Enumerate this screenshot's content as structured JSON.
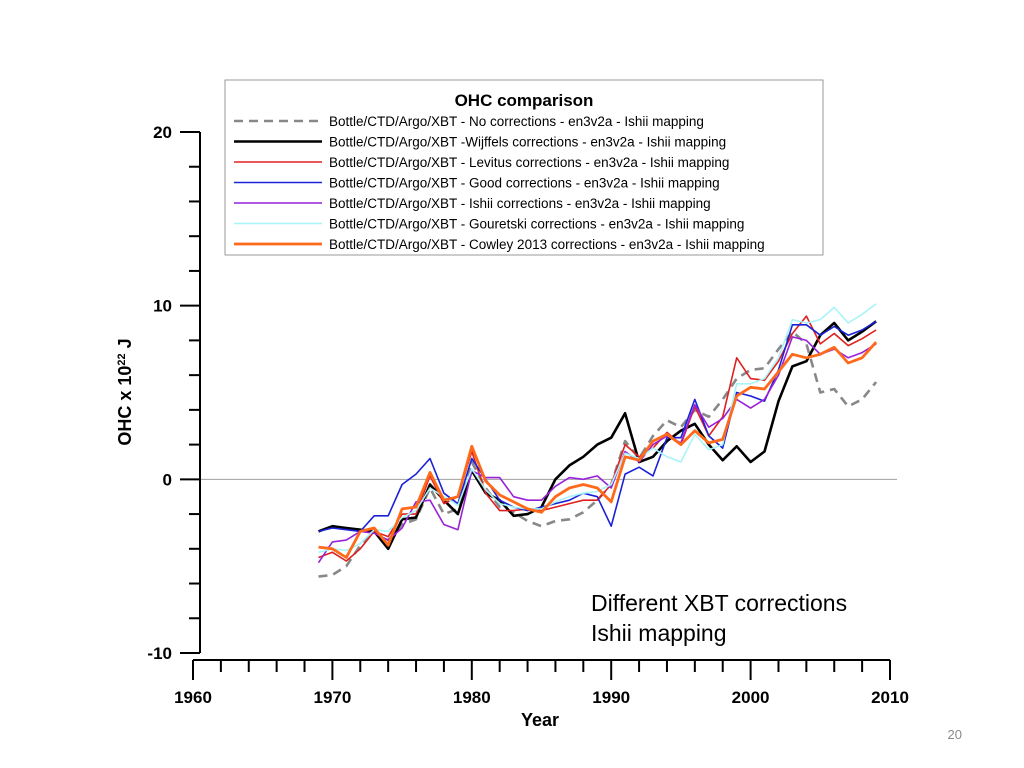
{
  "slide": {
    "page_number": "20"
  },
  "chart_data": {
    "type": "line",
    "title": "OHC comparison",
    "xlabel": "Year",
    "ylabel": "OHC x 10²² J",
    "ylabel_parts": {
      "prefix": "OHC x 10",
      "sup": "22",
      "suffix": " J"
    },
    "xlim": [
      1960,
      2010
    ],
    "ylim": [
      -10,
      20
    ],
    "x_major_ticks": [
      1960,
      1970,
      1980,
      1990,
      2000,
      2010
    ],
    "x_minor_step": 2,
    "y_major_ticks": [
      -10,
      0,
      10,
      20
    ],
    "y_minor_step": 2,
    "zero_line": true,
    "legend_position": "top",
    "annotations": [
      "Different XBT corrections",
      "Ishii mapping"
    ],
    "x": [
      1969,
      1970,
      1971,
      1972,
      1973,
      1974,
      1975,
      1976,
      1977,
      1978,
      1979,
      1980,
      1981,
      1982,
      1983,
      1984,
      1985,
      1986,
      1987,
      1988,
      1989,
      1990,
      1991,
      1992,
      1993,
      1994,
      1995,
      1996,
      1997,
      1998,
      1999,
      2000,
      2001,
      2002,
      2003,
      2004,
      2005,
      2006,
      2007,
      2008,
      2009
    ],
    "series": [
      {
        "name": "Bottle/CTD/Argo/XBT - No corrections - en3v2a - Ishii mapping",
        "color": "#888888",
        "dash": "9,6",
        "width": 2.6,
        "values": [
          -5.6,
          -5.5,
          -5.0,
          -3.8,
          -3.0,
          -3.5,
          -2.6,
          -2.3,
          -0.5,
          -2.0,
          -1.7,
          1.0,
          -0.5,
          -1.6,
          -1.9,
          -2.4,
          -2.7,
          -2.4,
          -2.3,
          -1.9,
          -1.2,
          -0.3,
          2.2,
          1.2,
          2.5,
          3.4,
          3.0,
          4.0,
          3.6,
          4.6,
          5.8,
          6.3,
          6.4,
          7.5,
          8.5,
          7.8,
          5.0,
          5.2,
          4.2,
          4.6,
          5.6
        ]
      },
      {
        "name": "Bottle/CTD/Argo/XBT -Wijffels corrections - en3v2a - Ishii mapping",
        "color": "#000000",
        "dash": "",
        "width": 2.6,
        "values": [
          -3.0,
          -2.7,
          -2.8,
          -2.9,
          -3.0,
          -4.0,
          -2.3,
          -2.2,
          -0.3,
          -1.2,
          -2.0,
          0.5,
          -0.8,
          -1.2,
          -2.1,
          -2.0,
          -1.6,
          0.0,
          0.8,
          1.3,
          2.0,
          2.4,
          3.8,
          1.0,
          1.3,
          2.2,
          2.8,
          3.2,
          2.0,
          1.1,
          1.9,
          1.0,
          1.6,
          4.5,
          6.5,
          6.8,
          8.3,
          9.0,
          8.0,
          8.5,
          9.1
        ]
      },
      {
        "name": "Bottle/CTD/Argo/XBT - Levitus corrections - en3v2a - Ishii mapping",
        "color": "#e02020",
        "dash": "",
        "width": 1.6,
        "values": [
          -4.5,
          -4.2,
          -4.7,
          -4.0,
          -3.0,
          -3.3,
          -2.0,
          -2.0,
          0.2,
          -1.4,
          -1.0,
          1.6,
          -0.8,
          -1.8,
          -1.8,
          -1.7,
          -1.8,
          -1.6,
          -1.4,
          -1.2,
          -1.2,
          -0.3,
          2.0,
          1.3,
          1.8,
          2.7,
          2.0,
          4.2,
          2.5,
          3.6,
          7.0,
          5.8,
          5.7,
          6.8,
          8.4,
          9.4,
          7.8,
          8.4,
          7.7,
          8.1,
          8.6
        ]
      },
      {
        "name": "Bottle/CTD/Argo/XBT - Good corrections - en3v2a - Ishii mapping",
        "color": "#1a22d8",
        "dash": "",
        "width": 1.6,
        "values": [
          -3.0,
          -2.8,
          -2.9,
          -3.0,
          -2.1,
          -2.1,
          -0.3,
          0.3,
          1.2,
          -0.8,
          -1.4,
          1.2,
          0.0,
          -1.2,
          -1.6,
          -1.8,
          -1.6,
          -1.4,
          -1.2,
          -0.8,
          -1.0,
          -2.7,
          0.3,
          0.7,
          0.2,
          2.4,
          2.4,
          4.6,
          2.5,
          1.8,
          5.0,
          4.8,
          4.5,
          6.3,
          8.9,
          8.9,
          8.3,
          8.8,
          8.3,
          8.6,
          9.1
        ]
      },
      {
        "name": "Bottle/CTD/Argo/XBT - Ishii corrections - en3v2a - Ishii mapping",
        "color": "#9922d8",
        "dash": "",
        "width": 1.6,
        "values": [
          -4.8,
          -3.6,
          -3.5,
          -3.0,
          -3.1,
          -3.5,
          -2.8,
          -1.3,
          -1.2,
          -2.6,
          -2.9,
          0.5,
          0.1,
          0.1,
          -1.0,
          -1.2,
          -1.2,
          -0.4,
          0.1,
          0.0,
          0.2,
          -0.5,
          1.6,
          1.0,
          2.0,
          2.5,
          2.1,
          4.3,
          3.0,
          3.5,
          4.6,
          4.1,
          4.6,
          6.0,
          8.2,
          8.0,
          7.2,
          7.5,
          7.0,
          7.3,
          7.8
        ]
      },
      {
        "name": "Bottle/CTD/Argo/XBT - Gouretski corrections - en3v2a - Ishii mapping",
        "color": "#a8f4f8",
        "dash": "",
        "width": 1.6,
        "values": [
          -4.2,
          -4.0,
          -4.1,
          -3.7,
          -2.9,
          -3.0,
          -2.2,
          -1.8,
          -0.5,
          -1.0,
          -1.5,
          0.6,
          -0.6,
          -1.4,
          -1.6,
          -1.7,
          -1.7,
          -1.3,
          -1.0,
          -0.8,
          -0.7,
          -0.3,
          1.5,
          1.2,
          1.8,
          1.3,
          1.0,
          2.6,
          1.7,
          2.0,
          5.5,
          5.5,
          5.8,
          7.0,
          9.2,
          9.0,
          9.2,
          9.9,
          9.0,
          9.5,
          10.1
        ]
      },
      {
        "name": "Bottle/CTD/Argo/XBT - Cowley 2013 corrections - en3v2a - Ishii mapping",
        "color": "#ff6a1a",
        "dash": "",
        "width": 2.8,
        "values": [
          -3.9,
          -4.0,
          -4.5,
          -3.0,
          -2.8,
          -3.8,
          -1.7,
          -1.6,
          0.4,
          -1.2,
          -1.0,
          1.9,
          -0.1,
          -0.9,
          -1.3,
          -1.7,
          -1.9,
          -1.0,
          -0.5,
          -0.3,
          -0.5,
          -1.3,
          1.3,
          1.1,
          2.2,
          2.6,
          2.0,
          2.8,
          2.1,
          2.3,
          4.8,
          5.3,
          5.2,
          6.2,
          7.2,
          7.0,
          7.2,
          7.6,
          6.7,
          7.0,
          7.9
        ]
      }
    ]
  }
}
